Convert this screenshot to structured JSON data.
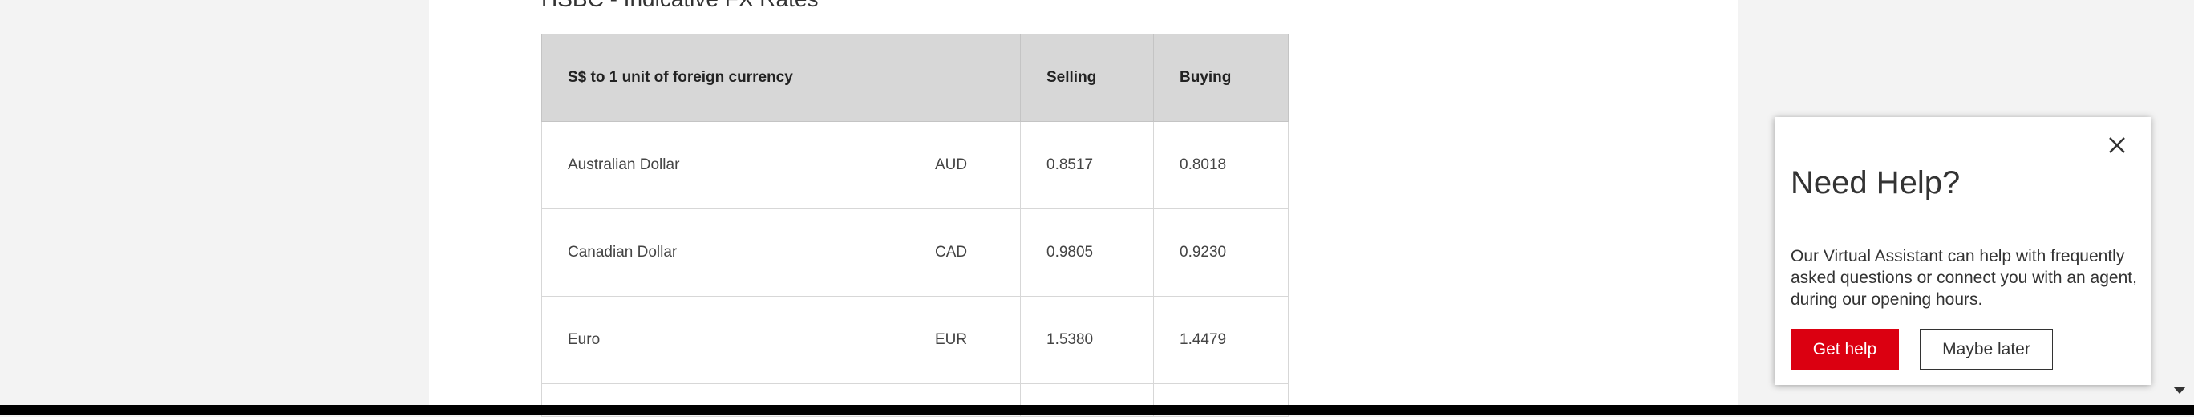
{
  "page": {
    "title": "HSBC - Indicative FX Rates"
  },
  "fx_table": {
    "headers": [
      "S$ to 1 unit of foreign currency",
      "",
      "Selling",
      "Buying"
    ],
    "rows": [
      {
        "currency": "Australian Dollar",
        "code": "AUD",
        "selling": "0.8517",
        "buying": "0.8018"
      },
      {
        "currency": "Canadian Dollar",
        "code": "CAD",
        "selling": "0.9805",
        "buying": "0.9230"
      },
      {
        "currency": "Euro",
        "code": "EUR",
        "selling": "1.5380",
        "buying": "1.4479"
      }
    ]
  },
  "help_popup": {
    "title": "Need Help?",
    "message": "Our Virtual Assistant can help with frequently asked questions or connect you with an agent, during our opening hours.",
    "primary_button": "Get help",
    "secondary_button": "Maybe later",
    "close_icon": "close-icon"
  },
  "colors": {
    "brand_red": "#db0011",
    "header_gray": "#d7d7d7",
    "page_bg": "#f3f3f3"
  }
}
